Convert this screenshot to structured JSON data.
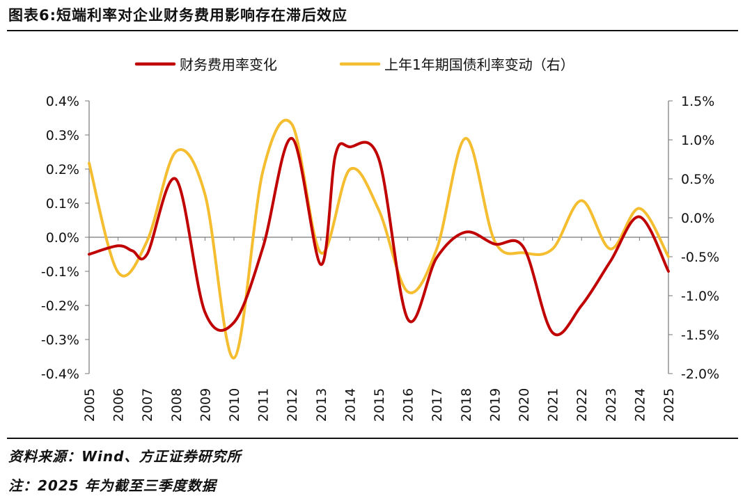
{
  "title": "图表6:短端利率对企业财务费用影响存在滞后效应",
  "source": "资料来源：Wind、方正证券研究所",
  "footnote": "注：2025 年为截至三季度数据",
  "chart_data": {
    "type": "line",
    "title": "图表6:短端利率对企业财务费用影响存在滞后效应",
    "legend_position": "top",
    "grid": false,
    "x_tick_labels": [
      "2005",
      "2006",
      "2007",
      "2008",
      "2009",
      "2010",
      "2011",
      "2012",
      "2013",
      "2014",
      "2015",
      "2016",
      "2017",
      "2018",
      "2019",
      "2020",
      "2021",
      "2022",
      "2023",
      "2024",
      "2025"
    ],
    "x_range": [
      2005,
      2025
    ],
    "y_left": {
      "range": [
        -0.4,
        0.4
      ],
      "tick_values": [
        -0.4,
        -0.3,
        -0.2,
        -0.1,
        0.0,
        0.1,
        0.2,
        0.3,
        0.4
      ],
      "tick_labels": [
        "-0.4%",
        "-0.3%",
        "-0.2%",
        "-0.1%",
        "0.0%",
        "0.1%",
        "0.2%",
        "0.3%",
        "0.4%"
      ]
    },
    "y_right": {
      "range": [
        -2.0,
        1.5
      ],
      "tick_values": [
        -2.0,
        -1.5,
        -1.0,
        -0.5,
        0.0,
        0.5,
        1.0,
        1.5
      ],
      "tick_labels": [
        "-2.0%",
        "-1.5%",
        "-1.0%",
        "-0.5%",
        "0.0%",
        "0.5%",
        "1.0%",
        "1.5%"
      ]
    },
    "series": [
      {
        "name": "财务费用率变化",
        "color": "#c00000",
        "axis": "left",
        "x": [
          2005,
          2006,
          2006.5,
          2007,
          2008,
          2009,
          2010,
          2011,
          2012,
          2013,
          2013.5,
          2014,
          2015,
          2016,
          2017,
          2018,
          2019,
          2020,
          2021,
          2022,
          2023,
          2024,
          2025
        ],
        "values": [
          -0.05,
          -0.025,
          -0.04,
          -0.05,
          0.17,
          -0.22,
          -0.25,
          -0.03,
          0.29,
          -0.08,
          0.24,
          0.265,
          0.23,
          -0.24,
          -0.06,
          0.015,
          -0.02,
          -0.03,
          -0.28,
          -0.2,
          -0.07,
          0.06,
          -0.1
        ]
      },
      {
        "name": "上年1年期国债利率变动（右）",
        "color": "#f5bd30",
        "axis": "right",
        "x": [
          2005,
          2006,
          2007,
          2008,
          2009,
          2010,
          2011,
          2012,
          2013,
          2014,
          2015,
          2016,
          2017,
          2018,
          2019,
          2020,
          2021,
          2022,
          2023,
          2024,
          2025
        ],
        "values": [
          0.7,
          -0.7,
          -0.3,
          0.85,
          0.3,
          -1.8,
          0.6,
          1.2,
          -0.45,
          0.62,
          0.1,
          -0.95,
          -0.4,
          1.02,
          -0.3,
          -0.45,
          -0.4,
          0.22,
          -0.4,
          0.12,
          -0.5
        ]
      }
    ]
  }
}
